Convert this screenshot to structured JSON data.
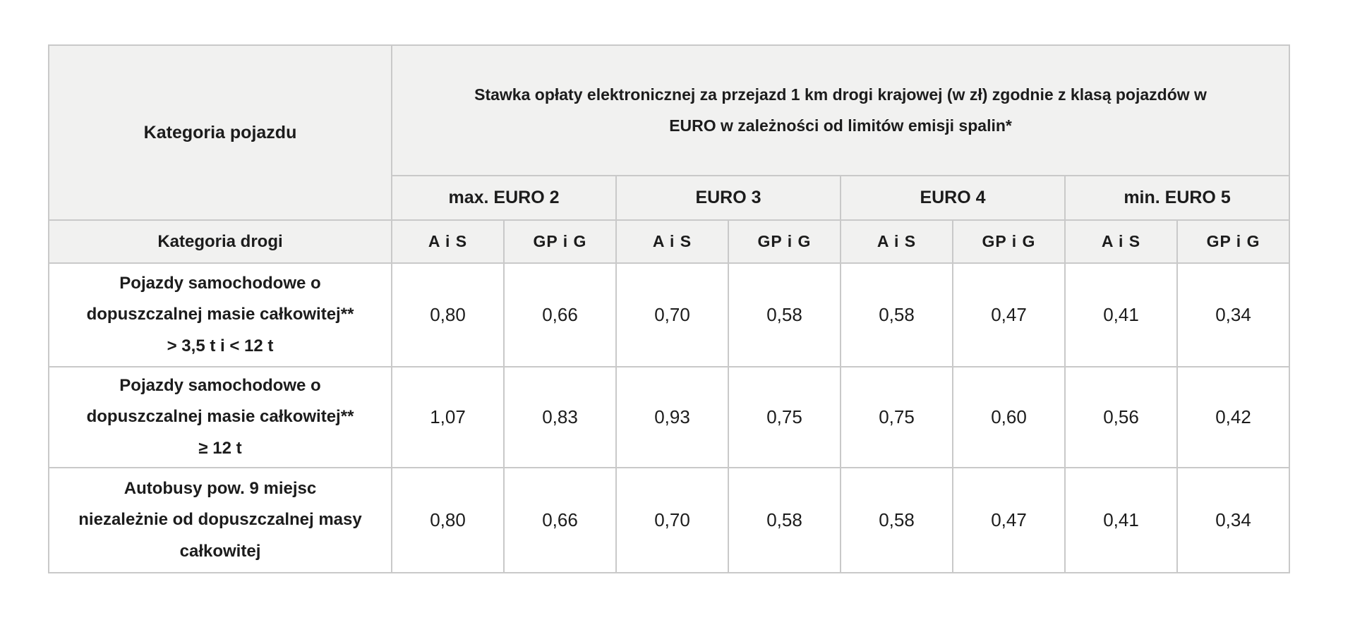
{
  "table": {
    "vehicle_category_header": "Kategoria pojazdu",
    "main_header_lines": [
      "Stawka opłaty elektronicznej za przejazd 1 km drogi krajowej (w zł) zgodnie z klasą pojazdów w",
      "EURO w zależności od limitów emisji spalin*"
    ],
    "euro_groups": [
      "max. EURO 2",
      "EURO 3",
      "EURO 4",
      "min. EURO 5"
    ],
    "road_category_header": "Kategoria drogi",
    "road_types": [
      "A i S",
      "GP i G",
      "A i S",
      "GP i G",
      "A i S",
      "GP i G",
      "A i S",
      "GP i G"
    ],
    "rows": [
      {
        "label_lines": [
          "Pojazdy samochodowe o",
          "dopuszczalnej masie całkowitej**",
          "> 3,5 t i < 12 t"
        ],
        "values": [
          "0,80",
          "0,66",
          "0,70",
          "0,58",
          "0,58",
          "0,47",
          "0,41",
          "0,34"
        ]
      },
      {
        "label_lines": [
          "Pojazdy samochodowe o",
          "dopuszczalnej masie całkowitej**",
          "≥ 12 t"
        ],
        "values": [
          "1,07",
          "0,83",
          "0,93",
          "0,75",
          "0,75",
          "0,60",
          "0,56",
          "0,42"
        ]
      },
      {
        "label_lines": [
          "Autobusy pow. 9 miejsc",
          "niezależnie od dopuszczalnej masy",
          "całkowitej"
        ],
        "values": [
          "0,80",
          "0,66",
          "0,70",
          "0,58",
          "0,58",
          "0,47",
          "0,41",
          "0,34"
        ]
      }
    ],
    "colors": {
      "header_bg": "#f1f1f0",
      "border": "#c9c9c9",
      "text": "#1c1c1c",
      "data_bg": "#ffffff"
    }
  }
}
